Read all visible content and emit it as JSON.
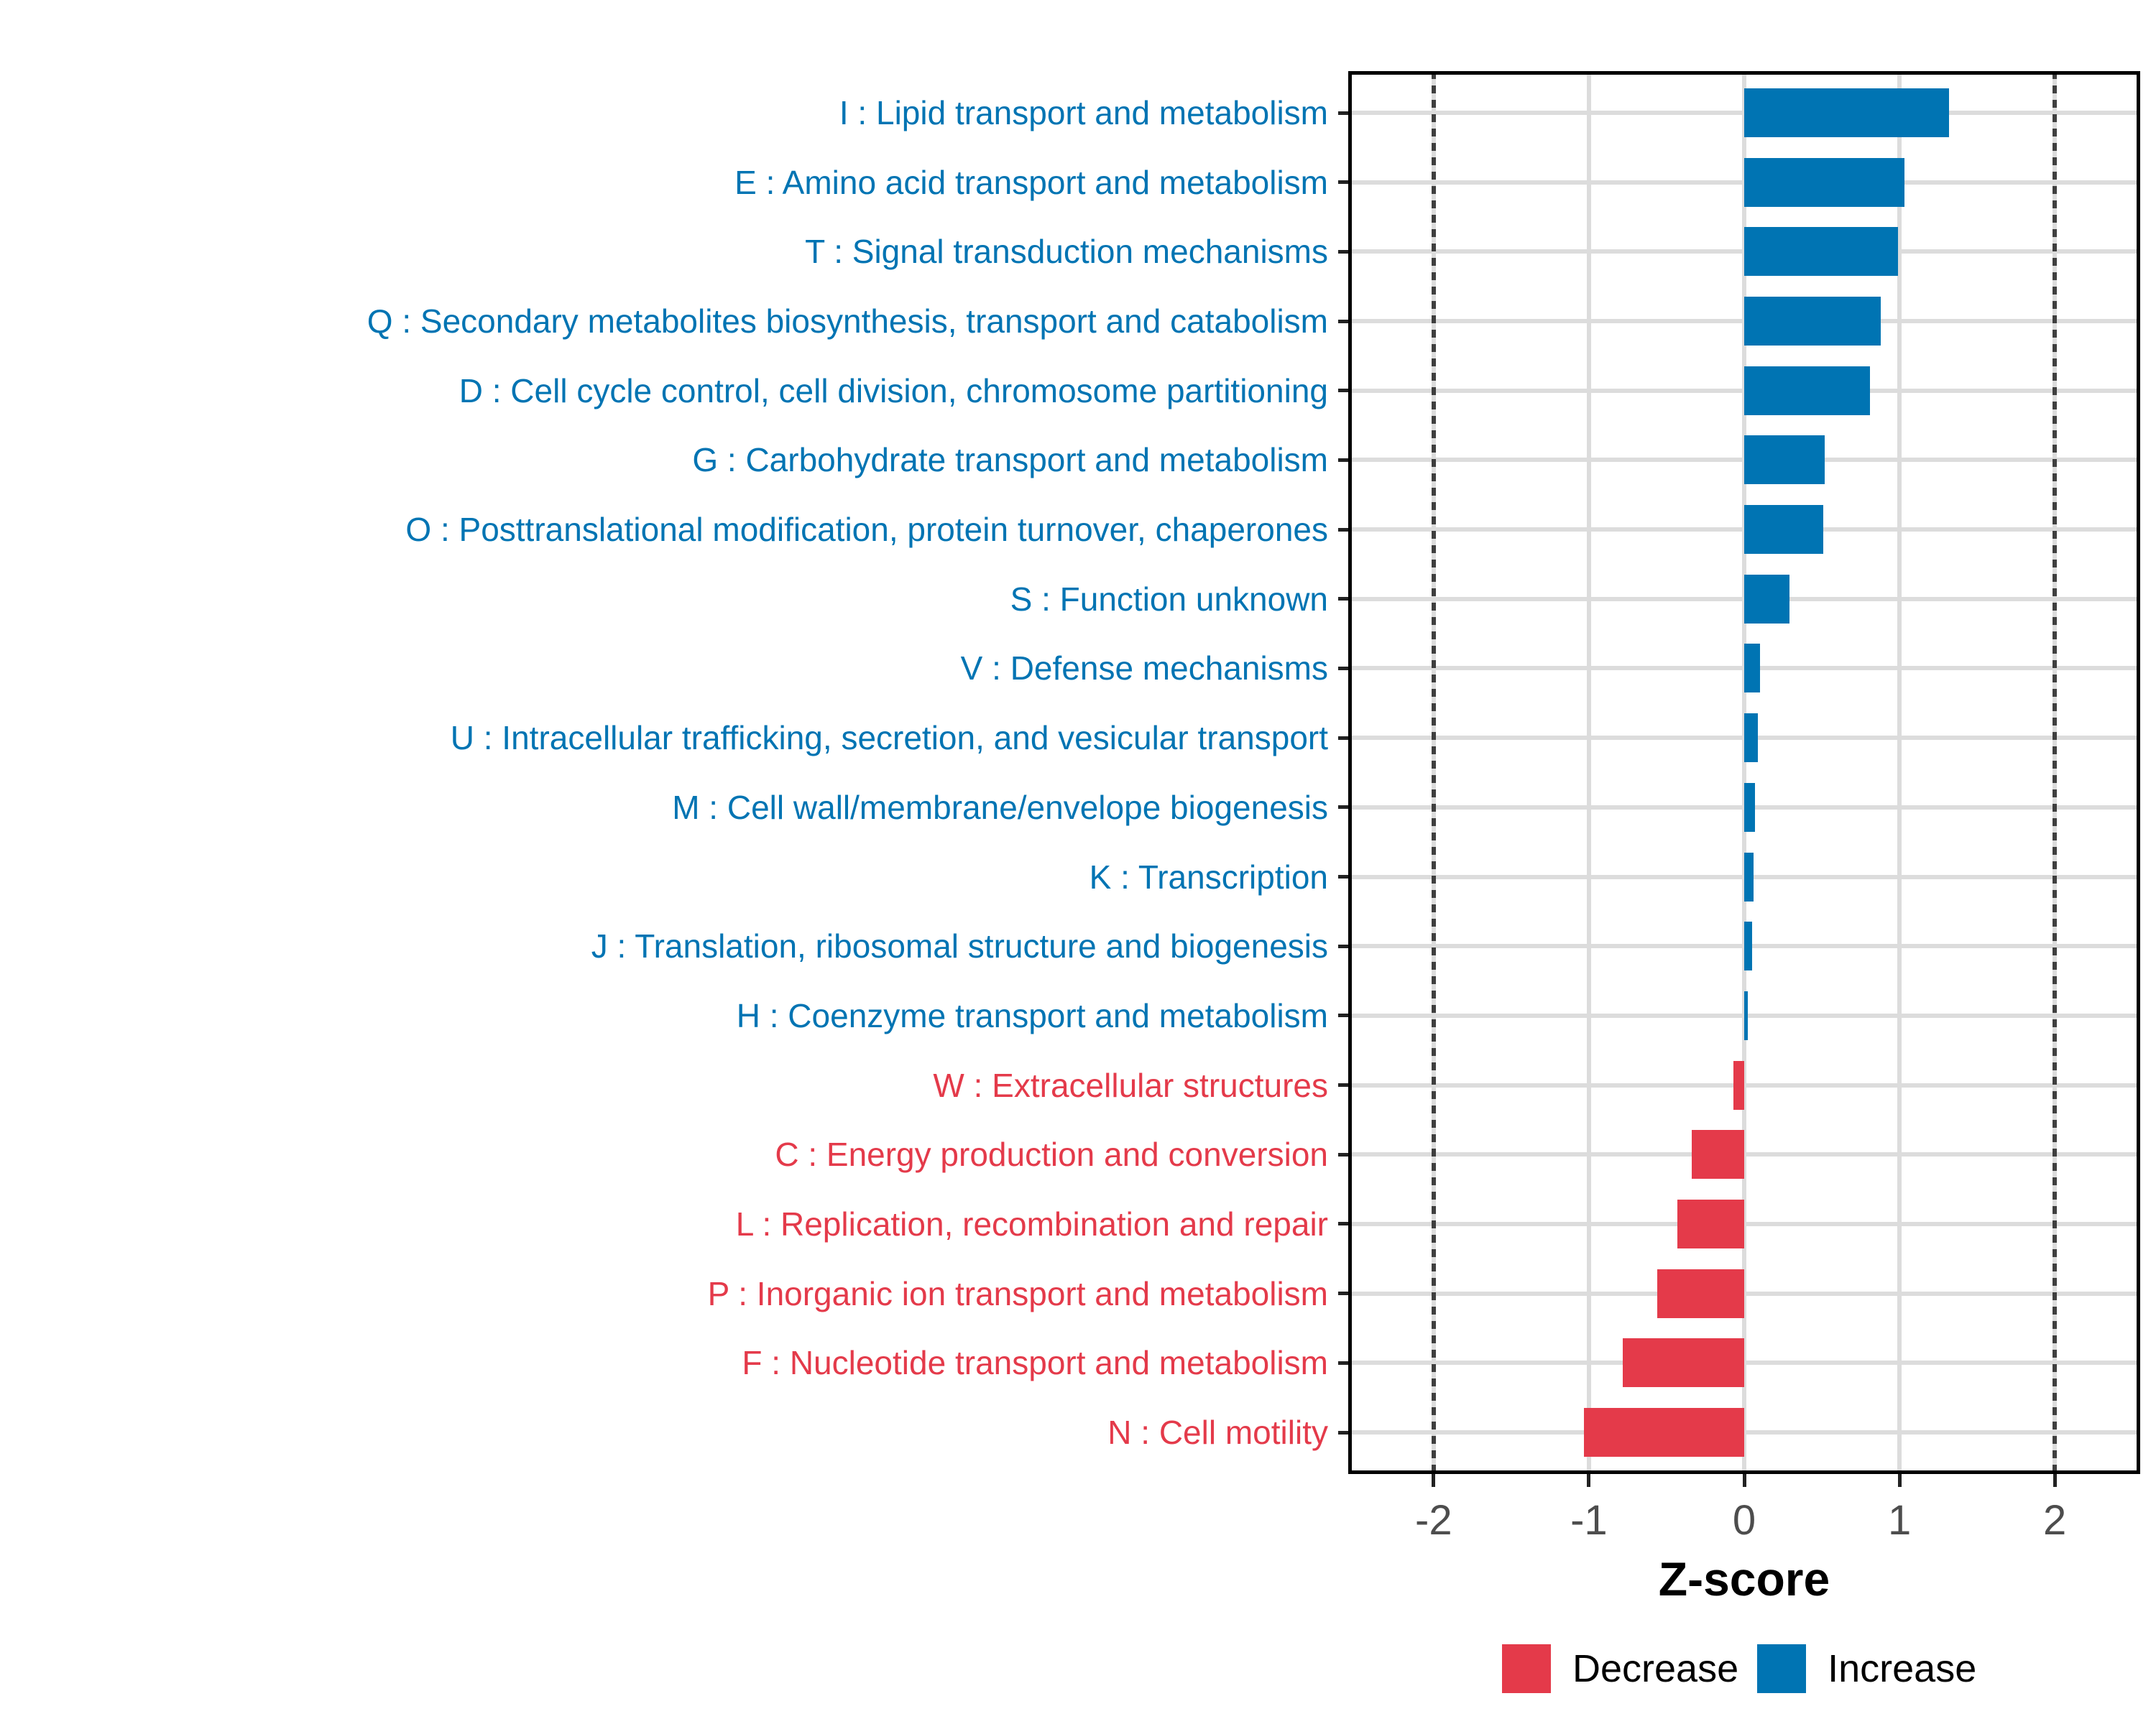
{
  "chart_data": {
    "type": "bar",
    "orientation": "horizontal",
    "title": "",
    "xlabel": "Z-score",
    "ylabel": "",
    "xlim": [
      -2.55,
      2.55
    ],
    "x_ticks": [
      -2,
      -1,
      0,
      1,
      2
    ],
    "x_tick_labels": [
      "-2",
      "-1",
      "0",
      "1",
      "2"
    ],
    "reference_lines_x": [
      -2,
      2
    ],
    "grid": "major-only",
    "legend_position": "bottom-right",
    "categories": [
      "I : Lipid transport and metabolism",
      "E : Amino acid transport and metabolism",
      "T : Signal transduction mechanisms",
      "Q : Secondary metabolites biosynthesis, transport and catabolism",
      "D : Cell cycle control, cell division, chromosome partitioning",
      "G : Carbohydrate transport and metabolism",
      "O : Posttranslational modification, protein turnover, chaperones",
      "S : Function unknown",
      "V : Defense mechanisms",
      "U : Intracellular trafficking, secretion, and vesicular transport",
      "M : Cell wall/membrane/envelope biogenesis",
      "K : Transcription",
      "J : Translation, ribosomal structure and biogenesis",
      "H : Coenzyme transport and metabolism",
      "W : Extracellular structures",
      "C : Energy production and conversion",
      "L : Replication, recombination and repair",
      "P : Inorganic ion transport and metabolism",
      "F : Nucleotide transport and metabolism",
      "N : Cell motility"
    ],
    "values": [
      1.32,
      1.03,
      0.99,
      0.88,
      0.81,
      0.52,
      0.51,
      0.29,
      0.1,
      0.09,
      0.07,
      0.06,
      0.05,
      0.01,
      -0.07,
      -0.34,
      -0.43,
      -0.56,
      -0.78,
      -1.03
    ],
    "groups": [
      "Increase",
      "Increase",
      "Increase",
      "Increase",
      "Increase",
      "Increase",
      "Increase",
      "Increase",
      "Increase",
      "Increase",
      "Increase",
      "Increase",
      "Increase",
      "Increase",
      "Decrease",
      "Decrease",
      "Decrease",
      "Decrease",
      "Decrease",
      "Decrease"
    ],
    "legend": [
      {
        "label": "Decrease",
        "color": "#e43a4a"
      },
      {
        "label": "Increase",
        "color": "#0074b3"
      }
    ]
  },
  "colors": {
    "increase": "#0074b3",
    "decrease": "#e43a4a",
    "grid": "#dcdcdc",
    "reference_line": "#3f3f3f",
    "axis_text": "#4d4d4d",
    "axis_line": "#000000",
    "tick_mark": "#222222",
    "background": "#ffffff"
  }
}
